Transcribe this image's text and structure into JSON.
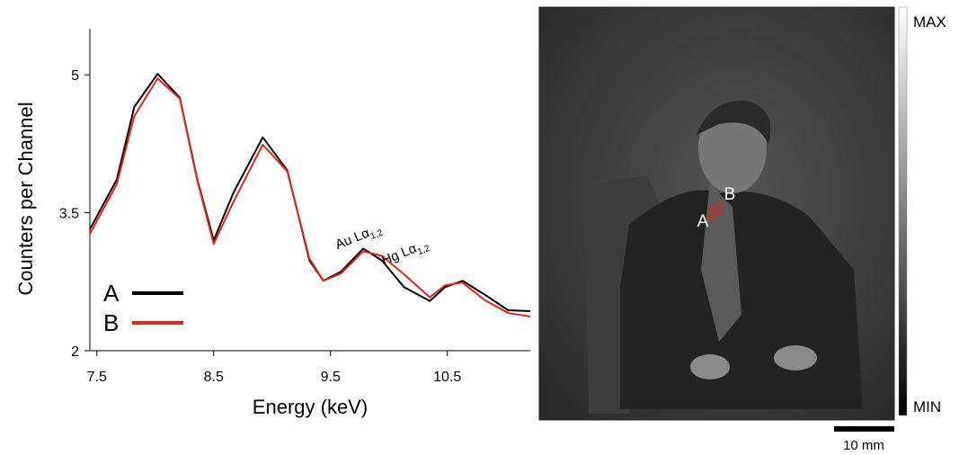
{
  "chart_data": {
    "type": "line",
    "x_label": "Energy (keV)",
    "y_label": "Counters per Channel",
    "x": [
      7.44,
      7.67,
      7.82,
      8.02,
      8.21,
      8.36,
      8.5,
      8.67,
      8.92,
      9.13,
      9.32,
      9.44,
      9.59,
      9.78,
      9.94,
      10.13,
      10.35,
      10.48,
      10.63,
      10.82,
      11.02,
      11.21
    ],
    "series": [
      {
        "name": "A",
        "color": "#000000",
        "values": [
          3.32,
          3.86,
          4.65,
          5.01,
          4.75,
          3.86,
          3.2,
          3.72,
          4.32,
          3.96,
          2.98,
          2.76,
          2.86,
          3.11,
          2.98,
          2.69,
          2.54,
          2.69,
          2.76,
          2.61,
          2.44,
          2.43
        ]
      },
      {
        "name": "B",
        "color": "#e8231b",
        "values": [
          3.27,
          3.81,
          4.55,
          4.96,
          4.74,
          3.85,
          3.16,
          3.62,
          4.24,
          3.95,
          3.0,
          2.76,
          2.84,
          3.08,
          3.03,
          2.83,
          2.58,
          2.71,
          2.74,
          2.55,
          2.41,
          2.37
        ]
      }
    ],
    "xlim": [
      7.44,
      11.21
    ],
    "xticks": [
      7.5,
      8.5,
      9.5,
      10.5
    ],
    "ylim": [
      2,
      5.5
    ],
    "yticks": [
      2,
      3.5,
      5
    ],
    "annotations": [
      {
        "text": "Au Lα",
        "sub": "1,2",
        "x": 9.75,
        "y": 3.2
      },
      {
        "text": "Hg Lα",
        "sub": "1,2",
        "x": 10.15,
        "y": 3.03
      }
    ],
    "legend": "lower left"
  },
  "image": {
    "labels": [
      "A",
      "B"
    ]
  },
  "colorbar": {
    "max": "MAX",
    "min": "MIN"
  },
  "scale_bar": "10 mm"
}
